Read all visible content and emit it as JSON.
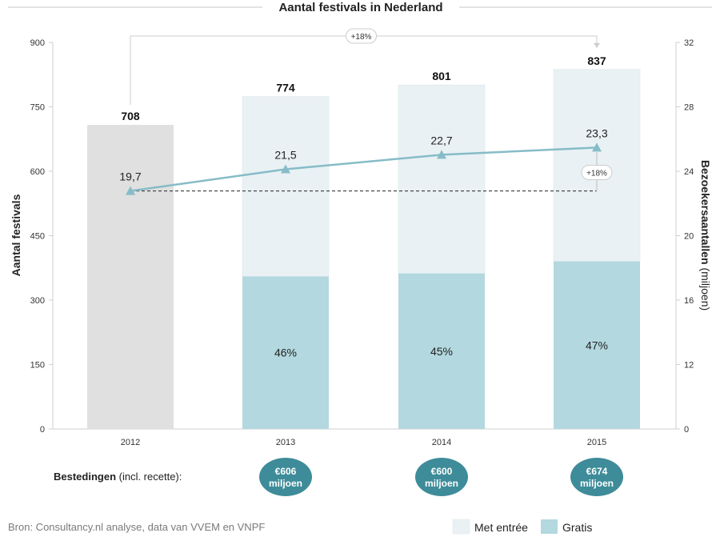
{
  "chart_data": {
    "type": "bar",
    "title": "Aantal festivals in Nederland",
    "ylabel": "Aantal festivals",
    "y2label_bold": "Bezoekersaantallen",
    "y2label_rest": "(miljoen)",
    "ylim": [
      0,
      900
    ],
    "yticks": [
      "0",
      "150",
      "300",
      "450",
      "600",
      "750",
      "900"
    ],
    "y2lim": [
      0,
      32
    ],
    "y2ticks": [
      "0",
      "12",
      "16",
      "20",
      "24",
      "28",
      "32"
    ],
    "categories": [
      "2012",
      "2013",
      "2014",
      "2015"
    ],
    "bar_totals": [
      708,
      774,
      801,
      837
    ],
    "bar_total_labels": [
      "708",
      "774",
      "801",
      "837"
    ],
    "gratis_values": [
      0,
      355,
      362,
      390
    ],
    "gratis_share_labels": [
      "",
      "46%",
      "45%",
      "47%"
    ],
    "visitors": [
      19.7,
      21.5,
      22.7,
      23.3
    ],
    "visitor_labels": [
      "19,7",
      "21,5",
      "22,7",
      "23,3"
    ],
    "annotation_festivals_growth": "+18%",
    "annotation_visitors_growth": "+18%",
    "series": [
      {
        "name": "Met entrée",
        "color": "#e9f1f4"
      },
      {
        "name": "Gratis",
        "color": "#b3d8df"
      }
    ],
    "colors": {
      "bar_2012": "#e0e0e0",
      "met_entree": "#e9f1f4",
      "gratis": "#b3d8df",
      "line": "#86bcc7",
      "badge": "#3e8c99"
    },
    "spending": {
      "label_bold": "Bestedingen",
      "label_rest": " (incl. recette):",
      "badges": [
        {
          "category": "2013",
          "line1": "€606",
          "line2": "miljoen"
        },
        {
          "category": "2014",
          "line1": "€600",
          "line2": "miljoen"
        },
        {
          "category": "2015",
          "line1": "€674",
          "line2": "miljoen"
        }
      ]
    },
    "source": "Bron: Consultancy.nl analyse, data van VVEM en VNPF"
  }
}
